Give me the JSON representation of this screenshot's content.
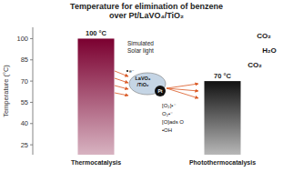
{
  "chart_data": {
    "type": "bar",
    "title": "Temperature for elimination of benzene\nover Pt/LaVO₄/TiO₂",
    "y_label": "Temperature (°C)",
    "categories": [
      "Thermocatalysis",
      "Photothermocatalysis"
    ],
    "values": [
      100,
      70
    ],
    "value_labels": [
      "100 °C",
      "70 °C"
    ],
    "data_labels": true,
    "colors": [
      "#7B0030",
      "#111111"
    ],
    "ylim": [
      18,
      108
    ],
    "yticks": [
      25,
      40,
      55,
      70,
      85,
      100
    ],
    "grid": false,
    "annotations": [
      "Simulated\nSolar light",
      "LaVO₄\n/TiO₂",
      "Pt",
      "e⁻",
      "[O₂]•⁻",
      "O₂•⁻",
      "[O]ads  O",
      "•OH",
      "CO₂",
      "H₂O",
      "CO₂"
    ]
  }
}
